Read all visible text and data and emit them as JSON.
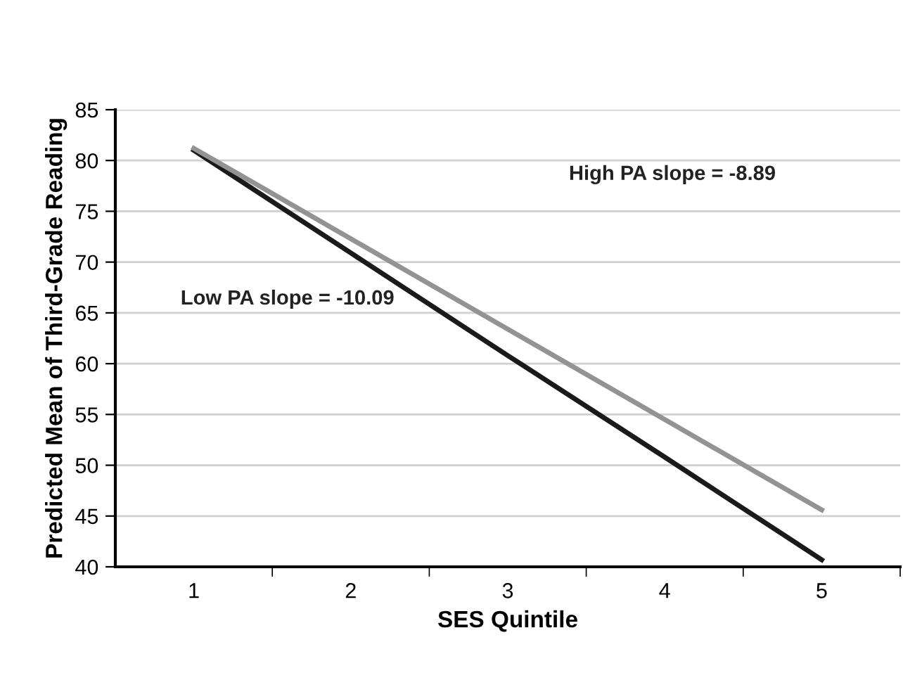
{
  "chart_data": {
    "type": "line",
    "xlabel": "SES Quintile",
    "ylabel": "Predicted Mean of Third-Grade Reading",
    "categories": [
      "1",
      "2",
      "3",
      "4",
      "5"
    ],
    "series": [
      {
        "color": "#1a1a1a",
        "values": [
          81.0,
          70.9,
          60.8,
          50.8,
          40.7
        ]
      },
      {
        "color": "#939393",
        "values": [
          81.2,
          72.3,
          63.4,
          54.5,
          45.6
        ]
      }
    ],
    "ylim": [
      40,
      85
    ],
    "yticks": [
      40,
      45,
      50,
      55,
      60,
      65,
      70,
      75,
      80,
      85
    ],
    "grid": "y",
    "marker": "none",
    "line_style": "solid",
    "annotations": [
      "High PA slope = -8.89",
      "Low PA slope = -10.09"
    ]
  }
}
